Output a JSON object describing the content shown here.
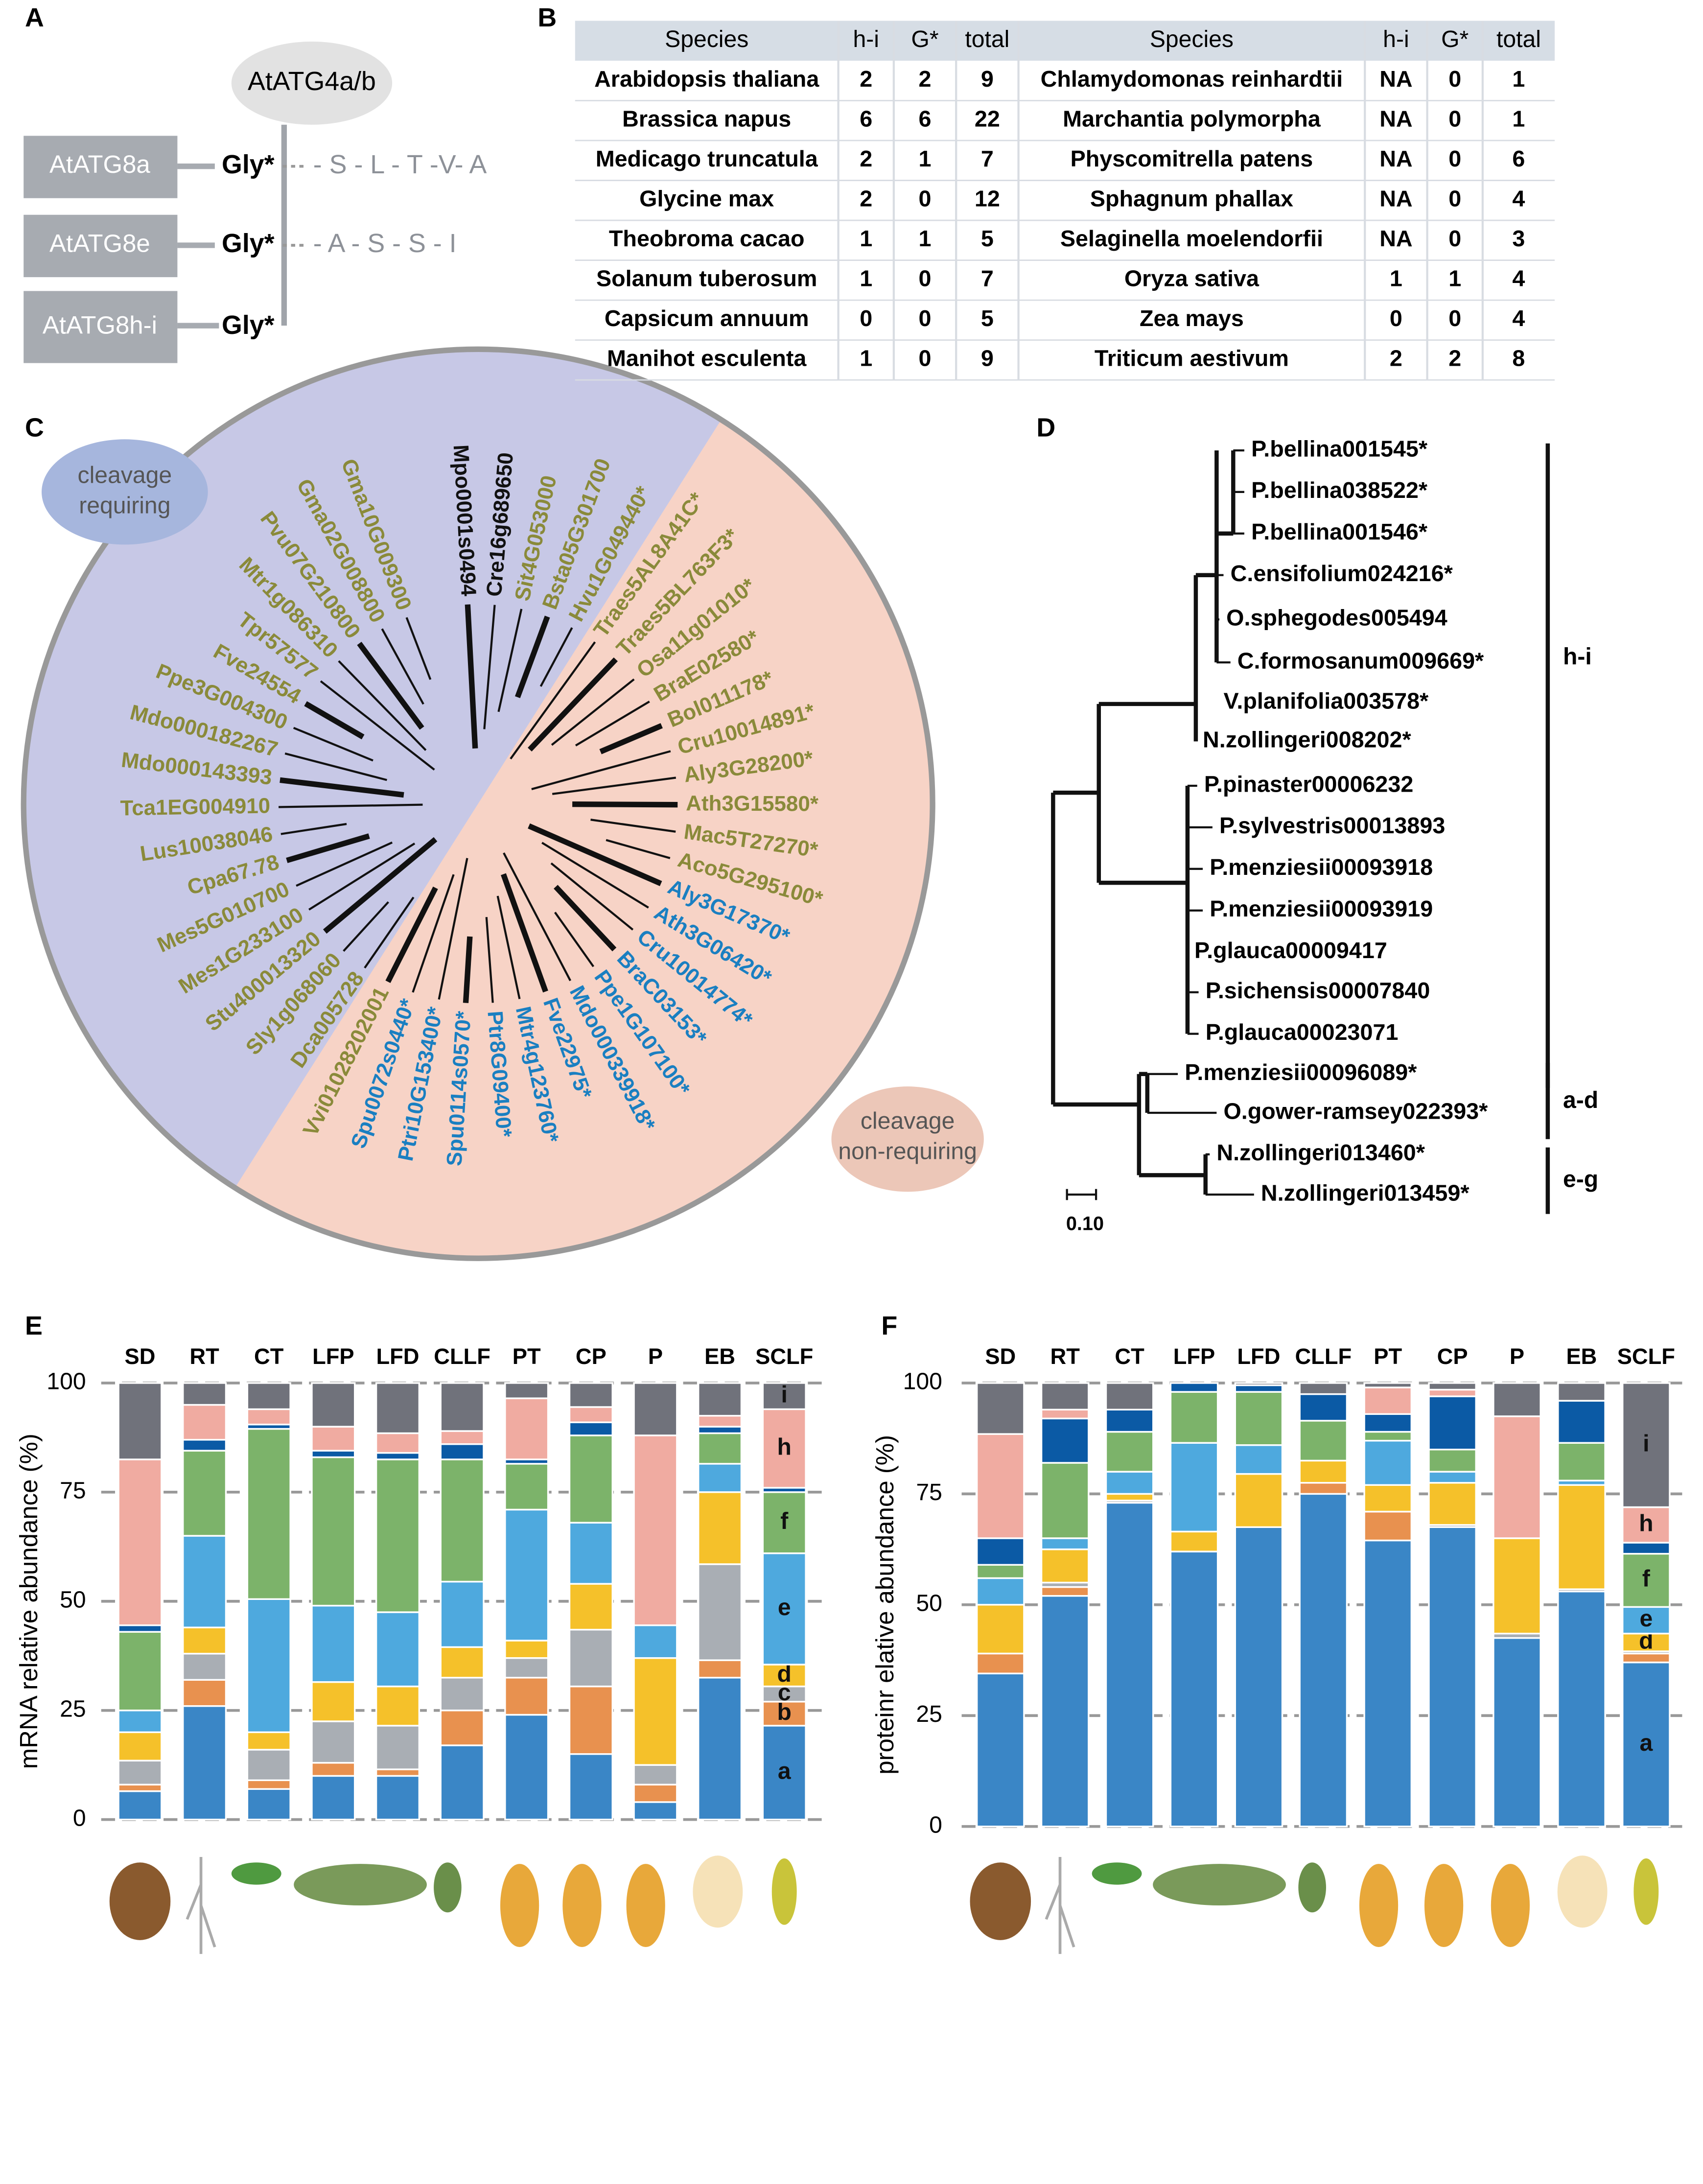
{
  "panel_labels": [
    "A",
    "B",
    "C",
    "D",
    "E",
    "F"
  ],
  "panel_a": {
    "protease": "AtATG4a/b",
    "proteins": [
      {
        "name": "AtATG8a",
        "gly": "Gly*",
        "tail": "- S - L - T -V- A"
      },
      {
        "name": "AtATG8e",
        "gly": "Gly*",
        "tail": "- A - S - S - I"
      },
      {
        "name": "AtATG8h-i",
        "gly": "Gly*"
      }
    ]
  },
  "table": {
    "header": [
      "Species",
      "h-i",
      "G*",
      "total",
      "Species",
      "h-i",
      "G*",
      "total"
    ],
    "rows": [
      [
        "Arabidopsis thaliana",
        2,
        2,
        9,
        "Chlamydomonas reinhardtii",
        "NA",
        0,
        1
      ],
      [
        "Brassica napus",
        6,
        6,
        22,
        "Marchantia polymorpha",
        "NA",
        0,
        1
      ],
      [
        "Medicago truncatula",
        2,
        1,
        7,
        "Physcomitrella patens",
        "NA",
        0,
        6
      ],
      [
        "Glycine max",
        2,
        0,
        12,
        "Sphagnum phallax",
        "NA",
        0,
        4
      ],
      [
        "Theobroma cacao",
        1,
        1,
        5,
        "Selaginella moelendorfii",
        "NA",
        0,
        3
      ],
      [
        "Solanum tuberosum",
        1,
        0,
        7,
        "Oryza sativa",
        1,
        1,
        4
      ],
      [
        "Capsicum annuum",
        0,
        0,
        5,
        "Zea mays",
        0,
        0,
        4
      ],
      [
        "Manihot esculenta",
        1,
        0,
        9,
        "Triticum aestivum",
        2,
        2,
        8
      ]
    ]
  },
  "tree_c": {
    "groups": [
      {
        "lines": [
          "cleavage",
          "requiring"
        ]
      },
      {
        "lines": [
          "cleavage",
          "non-requiring"
        ]
      }
    ],
    "leaves": [
      {
        "label": "Mpo0001s0494",
        "color": "#111111"
      },
      {
        "label": "Cre16g689650",
        "color": "#111111"
      },
      {
        "label": "Sit4G053000",
        "color": "#8a8a3a"
      },
      {
        "label": "Bsta05G301700",
        "color": "#8a8a3a"
      },
      {
        "label": "Hvu1G049440*",
        "color": "#8a8a3a"
      },
      {
        "label": "Traes5AL8A41C*",
        "color": "#8a8a3a"
      },
      {
        "label": "Traes5BL763F3*",
        "color": "#8a8a3a"
      },
      {
        "label": "Osa11g01010*",
        "color": "#8a8a3a"
      },
      {
        "label": "BraE02580*",
        "color": "#8a8a3a"
      },
      {
        "label": "Bol011178*",
        "color": "#8a8a3a"
      },
      {
        "label": "Cru10014891*",
        "color": "#8a8a3a"
      },
      {
        "label": "Aly3G28200*",
        "color": "#8a8a3a"
      },
      {
        "label": "Ath3G15580*",
        "color": "#8a8a3a"
      },
      {
        "label": "Mac5T27270*",
        "color": "#8a8a3a"
      },
      {
        "label": "Aco5G295100*",
        "color": "#8a8a3a"
      },
      {
        "label": "Aly3G17370*",
        "color": "#1a7fc1"
      },
      {
        "label": "Ath3G06420*",
        "color": "#1a7fc1"
      },
      {
        "label": "Cru10014774*",
        "color": "#1a7fc1"
      },
      {
        "label": "BraC03153*",
        "color": "#1a7fc1"
      },
      {
        "label": "Ppe1G107100*",
        "color": "#1a7fc1"
      },
      {
        "label": "Mdo000339918*",
        "color": "#1a7fc1"
      },
      {
        "label": "Fve22975*",
        "color": "#1a7fc1"
      },
      {
        "label": "Mtr4g123760*",
        "color": "#1a7fc1"
      },
      {
        "label": "Ptr8G09400*",
        "color": "#1a7fc1"
      },
      {
        "label": "Spu0114s0570*",
        "color": "#1a7fc1"
      },
      {
        "label": "Ptri10G153400*",
        "color": "#1a7fc1"
      },
      {
        "label": "Spu0072s0440*",
        "color": "#1a7fc1"
      },
      {
        "label": "Vvi01028202001",
        "color": "#8a8a3a"
      },
      {
        "label": "Dca005728",
        "color": "#8a8a3a"
      },
      {
        "label": "Sly1g068060",
        "color": "#8a8a3a"
      },
      {
        "label": "Stu400013320",
        "color": "#8a8a3a"
      },
      {
        "label": "Mes1G233100",
        "color": "#8a8a3a"
      },
      {
        "label": "Mes5G010700",
        "color": "#8a8a3a"
      },
      {
        "label": "Cpa67.78",
        "color": "#8a8a3a"
      },
      {
        "label": "Lus10038046",
        "color": "#8a8a3a"
      },
      {
        "label": "Tca1EG004910",
        "color": "#8a8a3a"
      },
      {
        "label": "Mdo000143393",
        "color": "#8a8a3a"
      },
      {
        "label": "Mdo000182267",
        "color": "#8a8a3a"
      },
      {
        "label": "Ppe3G004300",
        "color": "#8a8a3a"
      },
      {
        "label": "Fve24554",
        "color": "#8a8a3a"
      },
      {
        "label": "Tpr57577",
        "color": "#8a8a3a"
      },
      {
        "label": "Mtr1g086310",
        "color": "#8a8a3a"
      },
      {
        "label": "Pvu07G210800",
        "color": "#8a8a3a"
      },
      {
        "label": "Gma02G008800",
        "color": "#8a8a3a"
      },
      {
        "label": "Gma10G009300",
        "color": "#8a8a3a"
      }
    ]
  },
  "tree_d": {
    "leaves": [
      "P.bellina001545*",
      "P.bellina038522*",
      "P.bellina001546*",
      "C.ensifolium024216*",
      "O.sphegodes005494",
      "C.formosanum009669*",
      "V.planifolia003578*",
      "N.zollingeri008202*",
      "P.pinaster00006232",
      "P.sylvestris00013893",
      "P.menziesii00093918",
      "P.menziesii00093919",
      "P.glauca00009417",
      "P.sichensis00007840",
      "P.glauca00023071",
      "P.menziesii00096089*",
      "O.gower-ramsey022393*",
      "N.zollingeri013460*",
      "N.zollingeri013459*"
    ],
    "clades": [
      "h-i",
      "a-d",
      "e-g"
    ],
    "scale": "0.10"
  },
  "chart_data": [
    {
      "type": "bar",
      "stacked": true,
      "grid": true,
      "ylabel": "mRNA relative abundance (%)",
      "categories": [
        "SD",
        "RT",
        "CT",
        "LFP",
        "LFD",
        "CLLF",
        "PT",
        "CP",
        "P",
        "EB",
        "SCLF"
      ],
      "ylim": [
        0,
        100
      ],
      "yticks": [
        0,
        25,
        50,
        75,
        100
      ],
      "series": [
        {
          "name": "a",
          "color": "#3a86c6",
          "values": [
            6.5,
            26,
            7,
            10,
            10,
            17,
            24,
            15,
            4,
            32.5,
            21.5
          ]
        },
        {
          "name": "b",
          "color": "#e8914f",
          "values": [
            1.5,
            6,
            2,
            3,
            1.5,
            8,
            8.5,
            15.5,
            4,
            4,
            5.5
          ]
        },
        {
          "name": "c",
          "color": "#a9aeb4",
          "values": [
            5.5,
            6,
            7,
            9.5,
            10,
            7.5,
            4.5,
            13,
            4.5,
            22,
            3.5
          ]
        },
        {
          "name": "d",
          "color": "#f5c12a",
          "values": [
            6.5,
            6,
            4,
            9,
            9,
            7,
            4,
            10.5,
            24.5,
            16.5,
            5
          ]
        },
        {
          "name": "e",
          "color": "#4ea9de",
          "values": [
            5,
            21,
            30.5,
            17.5,
            17,
            15,
            30,
            14,
            7.5,
            6.5,
            25.5
          ]
        },
        {
          "name": "f",
          "color": "#7cb36a",
          "values": [
            18,
            19.5,
            39,
            34,
            35,
            28,
            10.5,
            20,
            0,
            7,
            14
          ]
        },
        {
          "name": "g",
          "color": "#0b5aa5",
          "values": [
            1.5,
            2.5,
            1,
            1.5,
            1.5,
            3.5,
            1,
            3,
            0,
            1.5,
            1
          ]
        },
        {
          "name": "h",
          "color": "#f0aba1",
          "values": [
            38,
            8,
            3.5,
            5.5,
            4.5,
            3,
            14,
            3.5,
            43.5,
            2.5,
            18
          ]
        },
        {
          "name": "i",
          "color": "#70727b",
          "values": [
            17.5,
            5,
            6,
            10,
            11.5,
            11,
            3.5,
            5.5,
            12,
            7.5,
            6
          ]
        }
      ]
    },
    {
      "type": "bar",
      "stacked": true,
      "grid": true,
      "ylabel": "proteinr elative abundance (%)",
      "categories": [
        "SD",
        "RT",
        "CT",
        "LFP",
        "LFD",
        "CLLF",
        "PT",
        "CP",
        "P",
        "EB",
        "SCLF"
      ],
      "ylim": [
        0,
        100
      ],
      "yticks": [
        0,
        25,
        50,
        75,
        100
      ],
      "series": [
        {
          "name": "a",
          "color": "#3a86c6",
          "values": [
            34.5,
            52,
            73,
            62,
            67.5,
            75,
            64.5,
            67.5,
            42.5,
            53,
            37
          ]
        },
        {
          "name": "b",
          "color": "#e8914f",
          "values": [
            4.5,
            2,
            0,
            0,
            0,
            2.5,
            6.5,
            0,
            0,
            0,
            2
          ]
        },
        {
          "name": "c",
          "color": "#a9aeb4",
          "values": [
            0,
            1,
            0.5,
            0,
            0,
            0,
            0,
            0.5,
            1,
            0.5,
            0.5
          ]
        },
        {
          "name": "d",
          "color": "#f5c12a",
          "values": [
            11,
            7.5,
            1.5,
            4.5,
            12,
            5,
            6,
            9.5,
            21.5,
            23.5,
            4
          ]
        },
        {
          "name": "e",
          "color": "#4ea9de",
          "values": [
            6,
            2.5,
            5,
            20,
            6.5,
            0,
            10,
            2.5,
            0,
            1,
            6
          ]
        },
        {
          "name": "f",
          "color": "#7cb36a",
          "values": [
            3,
            17,
            9,
            11.5,
            12,
            9,
            2,
            5,
            0,
            8.5,
            12
          ]
        },
        {
          "name": "g",
          "color": "#0b5aa5",
          "values": [
            6,
            10,
            5,
            2,
            1.5,
            6,
            4,
            12,
            0,
            9.5,
            2.5
          ]
        },
        {
          "name": "h",
          "color": "#f0aba1",
          "values": [
            23.5,
            2,
            0,
            0,
            0,
            0,
            6,
            1.5,
            27.5,
            0,
            8
          ]
        },
        {
          "name": "i",
          "color": "#70727b",
          "values": [
            11.5,
            6,
            6,
            0,
            0.5,
            2.5,
            1,
            1.5,
            7.5,
            4,
            28
          ]
        }
      ]
    }
  ]
}
